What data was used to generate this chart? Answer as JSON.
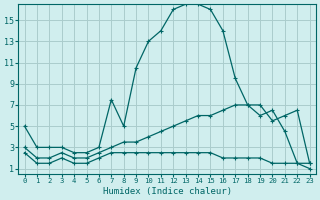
{
  "xlabel": "Humidex (Indice chaleur)",
  "background_color": "#d0eeee",
  "grid_color": "#aacccc",
  "line_color": "#006666",
  "x_ticks": [
    0,
    1,
    2,
    3,
    4,
    5,
    6,
    7,
    8,
    9,
    10,
    11,
    12,
    13,
    14,
    15,
    16,
    17,
    18,
    19,
    20,
    21,
    22,
    23
  ],
  "y_ticks": [
    1,
    3,
    5,
    7,
    9,
    11,
    13,
    15
  ],
  "ylim": [
    0.5,
    16.5
  ],
  "xlim": [
    -0.5,
    23.5
  ],
  "series": [
    {
      "x": [
        0,
        1,
        2,
        3,
        4,
        5,
        6,
        7,
        8,
        9,
        10,
        11,
        12,
        13,
        14,
        15,
        16,
        17,
        18,
        19,
        20,
        21,
        22,
        23
      ],
      "y": [
        5.0,
        3.0,
        3.0,
        3.0,
        2.5,
        2.5,
        3.0,
        7.5,
        5.0,
        10.5,
        13.0,
        14.0,
        16.0,
        16.5,
        16.5,
        16.0,
        14.0,
        9.5,
        7.0,
        6.0,
        6.5,
        4.5,
        1.5,
        1.5
      ]
    },
    {
      "x": [
        0,
        1,
        2,
        3,
        4,
        5,
        6,
        7,
        8,
        9,
        10,
        11,
        12,
        13,
        14,
        15,
        16,
        17,
        18,
        19,
        20,
        21,
        22,
        23
      ],
      "y": [
        3.0,
        2.0,
        2.0,
        2.5,
        2.0,
        2.0,
        2.5,
        3.0,
        3.5,
        3.5,
        4.0,
        4.5,
        5.0,
        5.5,
        6.0,
        6.0,
        6.5,
        7.0,
        7.0,
        7.0,
        5.5,
        6.0,
        6.5,
        1.5
      ]
    },
    {
      "x": [
        0,
        1,
        2,
        3,
        4,
        5,
        6,
        7,
        8,
        9,
        10,
        11,
        12,
        13,
        14,
        15,
        16,
        17,
        18,
        19,
        20,
        21,
        22,
        23
      ],
      "y": [
        2.5,
        1.5,
        1.5,
        2.0,
        1.5,
        1.5,
        2.0,
        2.5,
        2.5,
        2.5,
        2.5,
        2.5,
        2.5,
        2.5,
        2.5,
        2.5,
        2.0,
        2.0,
        2.0,
        2.0,
        1.5,
        1.5,
        1.5,
        1.0
      ]
    }
  ]
}
